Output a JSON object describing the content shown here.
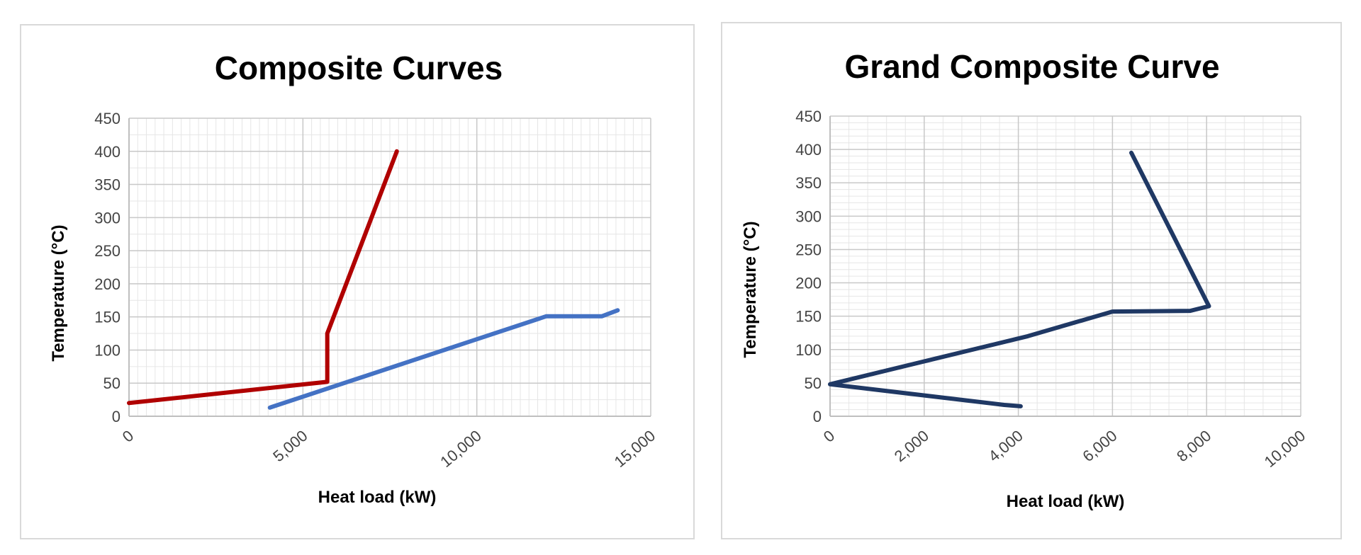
{
  "chart_data": [
    {
      "type": "line",
      "title": "Composite Curves",
      "xlabel": "Heat load (kW)",
      "ylabel": "Temperature (°C)",
      "xlim": [
        0,
        15000
      ],
      "ylim": [
        0,
        450
      ],
      "xticks": [
        "0",
        "5,000",
        "10,000",
        "15,000"
      ],
      "yticks": [
        "0",
        "50",
        "100",
        "150",
        "200",
        "250",
        "300",
        "350",
        "400",
        "450"
      ],
      "grid": true,
      "legend": "none",
      "series": [
        {
          "color": "#b00000",
          "x": [
            0,
            5700,
            5700,
            7700
          ],
          "y": [
            20,
            52,
            125,
            400
          ]
        },
        {
          "color": "#4472c4",
          "x": [
            4050,
            12000,
            13600,
            14050
          ],
          "y": [
            13,
            151,
            151,
            160
          ]
        }
      ]
    },
    {
      "type": "line",
      "title": "Grand Composite Curve",
      "xlabel": "Heat load (kW)",
      "ylabel": "Temperature (°C)",
      "xlim": [
        0,
        10000
      ],
      "ylim": [
        0,
        450
      ],
      "xticks": [
        "0",
        "2,000",
        "4,000",
        "6,000",
        "8,000",
        "10,000"
      ],
      "yticks": [
        "0",
        "50",
        "100",
        "150",
        "200",
        "250",
        "300",
        "350",
        "400",
        "450"
      ],
      "grid": true,
      "legend": "none",
      "series": [
        {
          "color": "#1f3864",
          "x": [
            6400,
            8050,
            7650,
            6000,
            4200,
            0,
            3700,
            4050
          ],
          "y": [
            395,
            165,
            158,
            157,
            120,
            48,
            17,
            15
          ]
        }
      ]
    }
  ]
}
